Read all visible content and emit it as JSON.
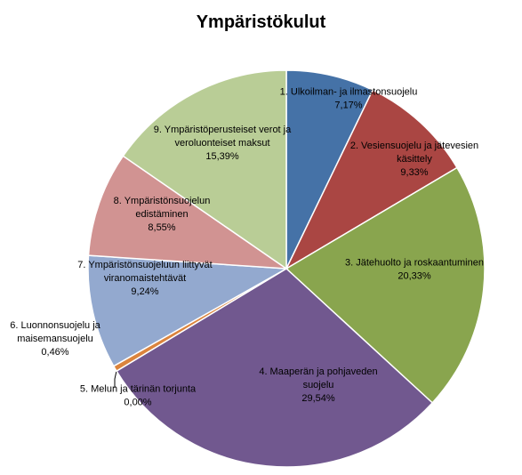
{
  "chart_data": {
    "type": "pie",
    "title": "Ympäristökulut",
    "slices": [
      {
        "label_lines": [
          "1. Ulkoilman- ja ilmastonsuojelu",
          "7,17%"
        ],
        "value": 7.17,
        "color": "#4572A7"
      },
      {
        "label_lines": [
          "2. Vesiensuojelu ja jätevesien",
          "käsittely",
          "9,33%"
        ],
        "value": 9.33,
        "color": "#AA4643"
      },
      {
        "label_lines": [
          "3. Jätehuolto ja roskaantuminen",
          "20,33%"
        ],
        "value": 20.33,
        "color": "#89A54E"
      },
      {
        "label_lines": [
          "4. Maaperän ja pohjaveden",
          "suojelu",
          "29,54%"
        ],
        "value": 29.54,
        "color": "#71588F"
      },
      {
        "label_lines": [
          "5. Melun ja tärinän torjunta",
          "0,00%"
        ],
        "value": 0.0,
        "color": "#4198AF"
      },
      {
        "label_lines": [
          "6. Luonnonsuojelu ja",
          "maisemansuojelu",
          "0,46%"
        ],
        "value": 0.46,
        "color": "#DB843D"
      },
      {
        "label_lines": [
          "7. Ympäristönsuojeluun liittyvät",
          "viranomaistehtävät",
          "9,24%"
        ],
        "value": 9.24,
        "color": "#93A9CF"
      },
      {
        "label_lines": [
          "8. Ympäristönsuojelun",
          "edistäminen",
          "8,55%"
        ],
        "value": 8.55,
        "color": "#D19392"
      },
      {
        "label_lines": [
          "9. Ympäristöperusteiset verot ja",
          "veroluonteiset maksut",
          "15,39%"
        ],
        "value": 15.39,
        "color": "#B9CD96"
      }
    ]
  }
}
